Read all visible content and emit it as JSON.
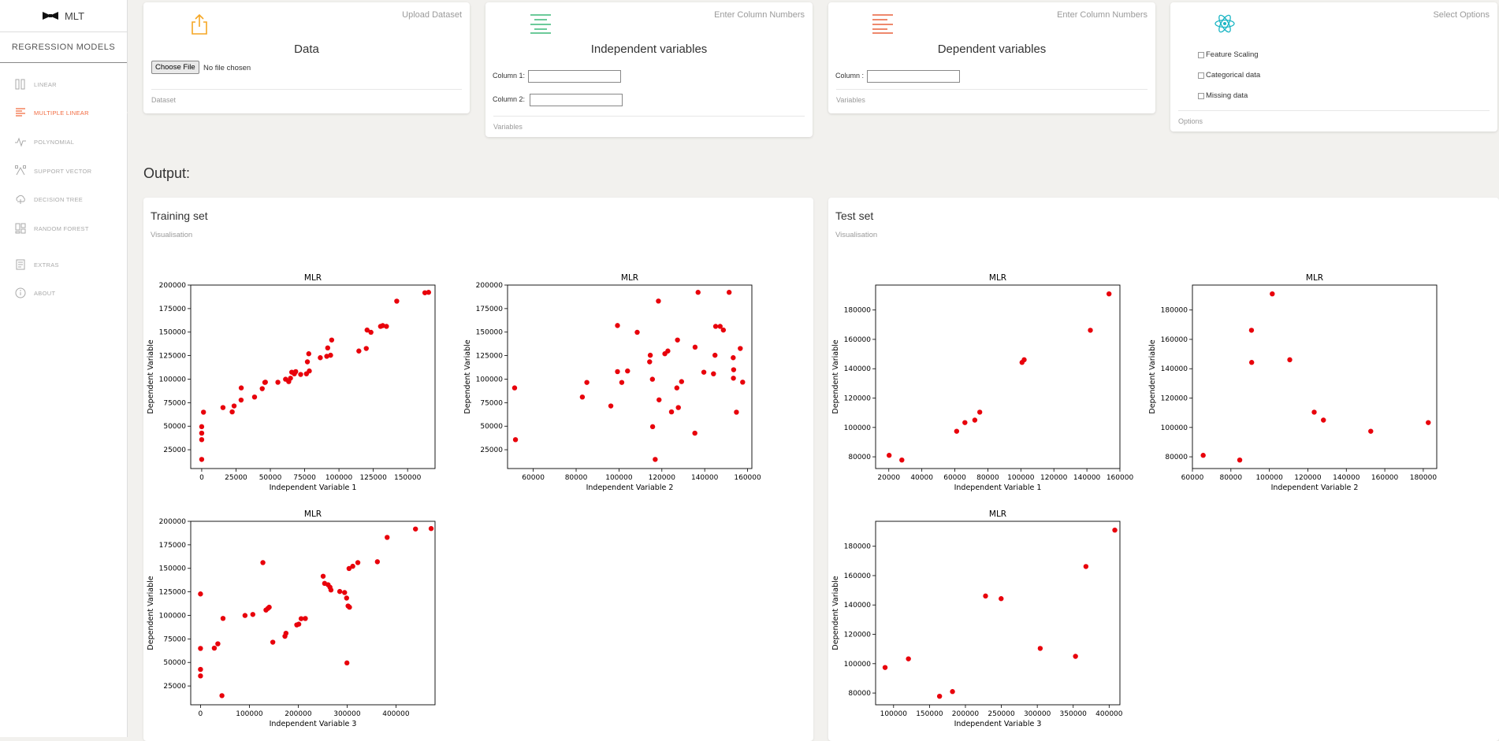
{
  "app": {
    "brand": "MLT",
    "subtitle": "REGRESSION MODELS"
  },
  "nav": [
    {
      "label": "LINEAR",
      "icon": "linear-icon",
      "active": false
    },
    {
      "label": "MULTIPLE LINEAR",
      "icon": "multiple-linear-icon",
      "active": true
    },
    {
      "label": "POLYNOMIAL",
      "icon": "polynomial-icon",
      "active": false
    },
    {
      "label": "SUPPORT VECTOR",
      "icon": "support-vector-icon",
      "active": false
    },
    {
      "label": "DECISION TREE",
      "icon": "decision-tree-icon",
      "active": false
    },
    {
      "label": "RANDOM FOREST",
      "icon": "random-forest-icon",
      "active": false
    },
    {
      "label": "EXTRAS",
      "icon": "extras-icon",
      "active": false
    },
    {
      "label": "ABOUT",
      "icon": "about-icon",
      "active": false
    }
  ],
  "colors": {
    "accent": "#f26a3f",
    "upload": "#f5a623",
    "independent": "#3cb878",
    "dependent": "#e8603c",
    "options": "#1ab5c4",
    "marker": "#e8000b"
  },
  "cards": {
    "data": {
      "category": "Upload Dataset",
      "title": "Data",
      "button": "Choose File",
      "file_status": "No file chosen",
      "footer": "Dataset"
    },
    "independent": {
      "category": "Enter Column Numbers",
      "title": "Independent variables",
      "fields": [
        "Column 1:",
        "Column 2:"
      ],
      "footer": "Variables"
    },
    "dependent": {
      "category": "Enter Column Numbers",
      "title": "Dependent variables",
      "fields": [
        "Column :"
      ],
      "footer": "Variables"
    },
    "options": {
      "category": "Select Options",
      "items": [
        "Feature Scaling",
        "Categorical data",
        "Missing data"
      ],
      "footer": "Options"
    }
  },
  "output": {
    "title": "Output:"
  },
  "panels": {
    "training": {
      "title": "Training set",
      "subtitle": "Visualisation"
    },
    "test": {
      "title": "Test set",
      "subtitle": "Visualisation"
    }
  },
  "chart_data": [
    {
      "type": "scatter",
      "title": "MLR",
      "xlabel": "Independent Variable 1",
      "ylabel": "Dependent Variable",
      "xlim": [
        -8000,
        170000
      ],
      "ylim": [
        5000,
        200000
      ],
      "xticks": [
        0,
        25000,
        50000,
        75000,
        100000,
        125000,
        150000
      ],
      "yticks": [
        25000,
        50000,
        75000,
        100000,
        125000,
        150000,
        175000,
        200000
      ],
      "points": [
        [
          0,
          14700
        ],
        [
          0,
          35700
        ],
        [
          0,
          42600
        ],
        [
          0,
          49500
        ],
        [
          1300,
          64900
        ],
        [
          15500,
          69800
        ],
        [
          22200,
          65200
        ],
        [
          23600,
          71500
        ],
        [
          28700,
          77800
        ],
        [
          28800,
          90700
        ],
        [
          38500,
          81000
        ],
        [
          44100,
          89900
        ],
        [
          46000,
          96500
        ],
        [
          46400,
          96800
        ],
        [
          55500,
          96700
        ],
        [
          61100,
          99900
        ],
        [
          63400,
          97400
        ],
        [
          64700,
          101000
        ],
        [
          65600,
          107400
        ],
        [
          67500,
          105700
        ],
        [
          68500,
          108000
        ],
        [
          72100,
          105000
        ],
        [
          76300,
          105700
        ],
        [
          78400,
          108700
        ],
        [
          77000,
          118400
        ],
        [
          78000,
          127000
        ],
        [
          86400,
          122800
        ],
        [
          91100,
          124300
        ],
        [
          91800,
          133200
        ],
        [
          93900,
          125400
        ],
        [
          94700,
          141600
        ],
        [
          114500,
          129900
        ],
        [
          119900,
          132600
        ],
        [
          120500,
          152200
        ],
        [
          123300,
          149800
        ],
        [
          130300,
          156100
        ],
        [
          131900,
          156900
        ],
        [
          134600,
          156100
        ],
        [
          142100,
          182900
        ],
        [
          162600,
          191800
        ],
        [
          165300,
          192300
        ]
      ]
    },
    {
      "type": "scatter",
      "title": "MLR",
      "xlabel": "Independent Variable 2",
      "ylabel": "Dependent Variable",
      "xlim": [
        48000,
        162000
      ],
      "xticks": [
        60000,
        80000,
        100000,
        120000,
        140000,
        160000
      ],
      "yticks": [
        25000,
        50000,
        75000,
        100000,
        125000,
        150000,
        175000,
        200000
      ],
      "ylim": [
        5000,
        200000
      ],
      "points": [
        [
          51300,
          90700
        ],
        [
          51700,
          35700
        ],
        [
          82900,
          81000
        ],
        [
          85000,
          96500
        ],
        [
          96200,
          71500
        ],
        [
          99300,
          108000
        ],
        [
          99300,
          157000
        ],
        [
          101300,
          96500
        ],
        [
          104000,
          108700
        ],
        [
          108500,
          149800
        ],
        [
          114300,
          118400
        ],
        [
          114600,
          125400
        ],
        [
          115600,
          99900
        ],
        [
          115700,
          49500
        ],
        [
          116900,
          14700
        ],
        [
          118400,
          183000
        ],
        [
          118700,
          78000
        ],
        [
          121400,
          127000
        ],
        [
          122800,
          129900
        ],
        [
          124500,
          65200
        ],
        [
          127000,
          90700
        ],
        [
          127300,
          141600
        ],
        [
          127700,
          69800
        ],
        [
          129200,
          97400
        ],
        [
          135400,
          42600
        ],
        [
          135500,
          134000
        ],
        [
          136900,
          192300
        ],
        [
          139600,
          107400
        ],
        [
          144100,
          105700
        ],
        [
          144800,
          125400
        ],
        [
          145100,
          156100
        ],
        [
          147200,
          156100
        ],
        [
          148700,
          152200
        ],
        [
          151400,
          192300
        ],
        [
          153300,
          122800
        ],
        [
          153400,
          101000
        ],
        [
          153500,
          110000
        ],
        [
          154800,
          64900
        ],
        [
          156600,
          132600
        ],
        [
          157700,
          96800
        ]
      ]
    },
    {
      "type": "scatter",
      "title": "MLR",
      "xlabel": "Independent Variable 3",
      "ylabel": "Dependent Variable",
      "xlim": [
        -20000,
        480000
      ],
      "xticks": [
        0,
        100000,
        200000,
        300000,
        400000
      ],
      "yticks": [
        25000,
        50000,
        75000,
        100000,
        125000,
        150000,
        175000,
        200000
      ],
      "ylim": [
        5000,
        200000
      ],
      "points": [
        [
          0,
          35700
        ],
        [
          0,
          42600
        ],
        [
          0,
          64900
        ],
        [
          0,
          122800
        ],
        [
          28300,
          65200
        ],
        [
          35500,
          69800
        ],
        [
          43900,
          14700
        ],
        [
          46100,
          96800
        ],
        [
          91100,
          99900
        ],
        [
          107100,
          101000
        ],
        [
          127700,
          156100
        ],
        [
          134000,
          105700
        ],
        [
          137900,
          107400
        ],
        [
          140600,
          108700
        ],
        [
          148000,
          71500
        ],
        [
          172800,
          77800
        ],
        [
          174900,
          81000
        ],
        [
          197000,
          89900
        ],
        [
          201100,
          90700
        ],
        [
          206000,
          96500
        ],
        [
          214600,
          96700
        ],
        [
          251000,
          141600
        ],
        [
          254000,
          134000
        ],
        [
          261000,
          132600
        ],
        [
          265000,
          129900
        ],
        [
          267000,
          127000
        ],
        [
          285000,
          125400
        ],
        [
          294900,
          124300
        ],
        [
          299000,
          118400
        ],
        [
          302000,
          110000
        ],
        [
          304900,
          108700
        ],
        [
          299700,
          49500
        ],
        [
          304000,
          149800
        ],
        [
          311600,
          152200
        ],
        [
          322000,
          156100
        ],
        [
          362000,
          157000
        ],
        [
          382000,
          182900
        ],
        [
          440000,
          191800
        ],
        [
          472000,
          192300
        ]
      ]
    },
    {
      "type": "scatter",
      "title": "MLR",
      "xlabel": "Independent Variable 1",
      "ylabel": "Dependent Variable",
      "xlim": [
        12000,
        160000
      ],
      "xticks": [
        20000,
        40000,
        60000,
        80000,
        100000,
        120000,
        140000,
        160000
      ],
      "yticks": [
        80000,
        100000,
        120000,
        140000,
        160000,
        180000
      ],
      "ylim": [
        72000,
        197000
      ],
      "points": [
        [
          20200,
          81000
        ],
        [
          27900,
          77800
        ],
        [
          61100,
          97400
        ],
        [
          66100,
          103300
        ],
        [
          72100,
          105000
        ],
        [
          75100,
          110400
        ],
        [
          100700,
          144300
        ],
        [
          102000,
          146100
        ],
        [
          142100,
          166200
        ],
        [
          153400,
          191000
        ]
      ]
    },
    {
      "type": "scatter",
      "title": "MLR",
      "xlabel": "Independent Variable 2",
      "ylabel": "Dependent Variable",
      "xlim": [
        60000,
        187000
      ],
      "xticks": [
        60000,
        80000,
        100000,
        120000,
        140000,
        160000,
        180000
      ],
      "yticks": [
        80000,
        100000,
        120000,
        140000,
        160000,
        180000
      ],
      "ylim": [
        72000,
        197000
      ],
      "points": [
        [
          65600,
          81000
        ],
        [
          84600,
          77800
        ],
        [
          90700,
          166200
        ],
        [
          90800,
          144300
        ],
        [
          101500,
          191000
        ],
        [
          110600,
          146100
        ],
        [
          123300,
          110400
        ],
        [
          128100,
          105000
        ],
        [
          152700,
          97400
        ],
        [
          182600,
          103300
        ]
      ]
    },
    {
      "type": "scatter",
      "title": "MLR",
      "xlabel": "Independent Variable 3",
      "ylabel": "Dependent Variable",
      "xlim": [
        75000,
        415000
      ],
      "xticks": [
        100000,
        150000,
        200000,
        250000,
        300000,
        350000,
        400000
      ],
      "yticks": [
        80000,
        100000,
        120000,
        140000,
        160000,
        180000
      ],
      "ylim": [
        72000,
        197000
      ],
      "points": [
        [
          88200,
          97400
        ],
        [
          120700,
          103300
        ],
        [
          164000,
          77800
        ],
        [
          182000,
          81000
        ],
        [
          228000,
          146100
        ],
        [
          249700,
          144300
        ],
        [
          304100,
          110400
        ],
        [
          353200,
          105000
        ],
        [
          367700,
          166200
        ],
        [
          407900,
          191000
        ]
      ]
    }
  ]
}
